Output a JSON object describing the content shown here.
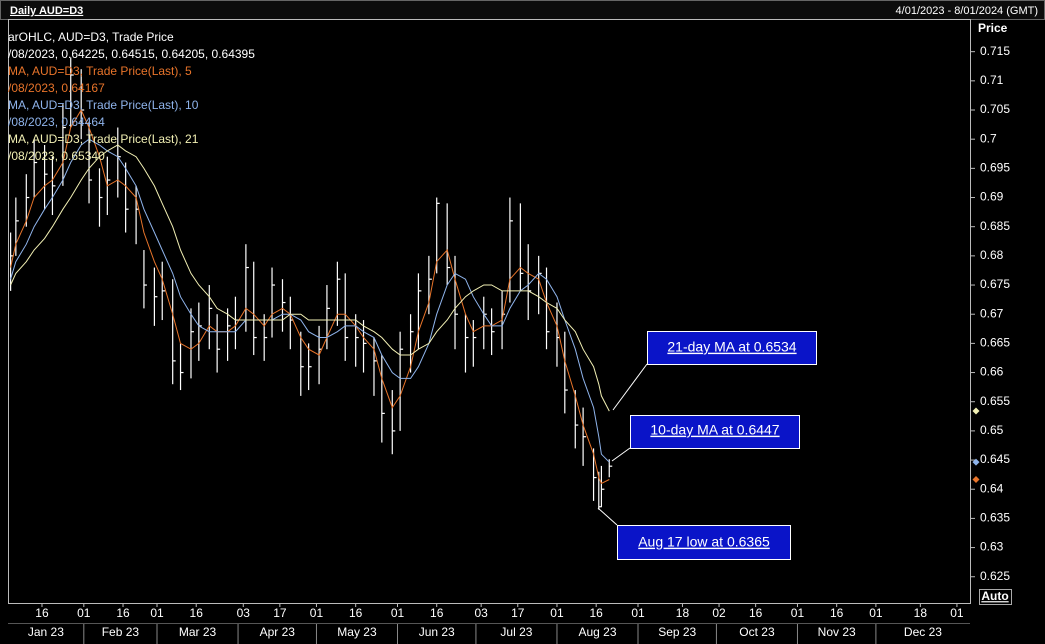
{
  "header": {
    "title": "Daily AUD=D3",
    "range": "4/01/2023 - 8/01/2024 (GMT)",
    "auto_button": "Auto"
  },
  "legend": [
    {
      "color": "#ffffff",
      "lines": [
        "arOHLC, AUD=D3, Trade Price",
        "/08/2023, 0.64225, 0.64515, 0.64205, 0.64395"
      ]
    },
    {
      "color": "#e8742a",
      "lines": [
        "MA, AUD=D3, Trade Price(Last),  5",
        "/08/2023, 0.64167"
      ]
    },
    {
      "color": "#8fb4ec",
      "lines": [
        "MA, AUD=D3, Trade Price(Last),  10",
        "/08/2023, 0.64464"
      ]
    },
    {
      "color": "#f2f0b4",
      "lines": [
        "MA, AUD=D3, Trade Price(Last),  21",
        "/08/2023, 0.65340"
      ]
    }
  ],
  "annotations": [
    "21-day MA at 0.6534",
    "10-day MA at 0.6447",
    "Aug 17 low at 0.6365"
  ],
  "chart_data": {
    "type": "ohlc",
    "ylabel": "Price",
    "x": [
      "2023-01-04",
      "2023-01-06",
      "2023-01-10",
      "2023-01-13",
      "2023-01-17",
      "2023-01-20",
      "2023-01-24",
      "2023-01-27",
      "2023-01-31",
      "2023-02-03",
      "2023-02-07",
      "2023-02-10",
      "2023-02-14",
      "2023-02-17",
      "2023-02-21",
      "2023-02-24",
      "2023-02-28",
      "2023-03-03",
      "2023-03-07",
      "2023-03-10",
      "2023-03-14",
      "2023-03-17",
      "2023-03-21",
      "2023-03-24",
      "2023-03-28",
      "2023-03-31",
      "2023-04-04",
      "2023-04-07",
      "2023-04-11",
      "2023-04-14",
      "2023-04-18",
      "2023-04-21",
      "2023-04-25",
      "2023-04-28",
      "2023-05-02",
      "2023-05-05",
      "2023-05-09",
      "2023-05-12",
      "2023-05-16",
      "2023-05-19",
      "2023-05-23",
      "2023-05-26",
      "2023-05-30",
      "2023-06-02",
      "2023-06-06",
      "2023-06-09",
      "2023-06-13",
      "2023-06-16",
      "2023-06-20",
      "2023-06-23",
      "2023-06-27",
      "2023-06-30",
      "2023-07-04",
      "2023-07-07",
      "2023-07-11",
      "2023-07-14",
      "2023-07-18",
      "2023-07-21",
      "2023-07-25",
      "2023-07-28",
      "2023-08-01",
      "2023-08-04",
      "2023-08-08",
      "2023-08-11",
      "2023-08-15",
      "2023-08-17",
      "2023-08-18",
      "2023-08-21"
    ],
    "bars": {
      "color": "#ffffff",
      "high": [
        0.684,
        0.69,
        0.694,
        0.7,
        0.699,
        0.697,
        0.706,
        0.714,
        0.712,
        0.703,
        0.695,
        0.697,
        0.702,
        0.696,
        0.692,
        0.681,
        0.678,
        0.679,
        0.676,
        0.665,
        0.671,
        0.672,
        0.675,
        0.67,
        0.671,
        0.673,
        0.682,
        0.679,
        0.67,
        0.678,
        0.676,
        0.673,
        0.667,
        0.665,
        0.668,
        0.675,
        0.679,
        0.677,
        0.67,
        0.669,
        0.666,
        0.663,
        0.657,
        0.667,
        0.67,
        0.677,
        0.68,
        0.69,
        0.689,
        0.68,
        0.67,
        0.669,
        0.673,
        0.671,
        0.674,
        0.69,
        0.689,
        0.682,
        0.68,
        0.678,
        0.672,
        0.667,
        0.657,
        0.654,
        0.647,
        0.643,
        0.644,
        0.64515
      ],
      "low": [
        0.674,
        0.68,
        0.685,
        0.69,
        0.688,
        0.687,
        0.692,
        0.702,
        0.7,
        0.689,
        0.685,
        0.687,
        0.69,
        0.684,
        0.682,
        0.671,
        0.668,
        0.669,
        0.658,
        0.657,
        0.659,
        0.662,
        0.664,
        0.66,
        0.662,
        0.664,
        0.667,
        0.663,
        0.662,
        0.666,
        0.667,
        0.664,
        0.656,
        0.657,
        0.658,
        0.664,
        0.668,
        0.662,
        0.661,
        0.66,
        0.656,
        0.648,
        0.646,
        0.65,
        0.66,
        0.664,
        0.67,
        0.677,
        0.675,
        0.664,
        0.66,
        0.661,
        0.664,
        0.663,
        0.664,
        0.672,
        0.674,
        0.669,
        0.67,
        0.664,
        0.661,
        0.653,
        0.647,
        0.644,
        0.638,
        0.6365,
        0.637,
        0.64205
      ],
      "close": [
        0.68,
        0.686,
        0.69,
        0.696,
        0.694,
        0.692,
        0.702,
        0.711,
        0.705,
        0.693,
        0.69,
        0.693,
        0.697,
        0.688,
        0.688,
        0.675,
        0.673,
        0.674,
        0.662,
        0.66,
        0.667,
        0.668,
        0.671,
        0.664,
        0.668,
        0.669,
        0.678,
        0.666,
        0.666,
        0.675,
        0.672,
        0.669,
        0.661,
        0.661,
        0.664,
        0.671,
        0.676,
        0.666,
        0.666,
        0.665,
        0.662,
        0.653,
        0.65,
        0.664,
        0.667,
        0.674,
        0.676,
        0.689,
        0.678,
        0.67,
        0.666,
        0.666,
        0.67,
        0.667,
        0.67,
        0.686,
        0.677,
        0.674,
        0.677,
        0.667,
        0.666,
        0.657,
        0.651,
        0.649,
        0.642,
        0.637,
        0.64,
        0.64395
      ]
    },
    "series": [
      {
        "color": "#e8742a",
        "values": [
          0.678,
          0.682,
          0.686,
          0.69,
          0.692,
          0.693,
          0.696,
          0.702,
          0.705,
          0.702,
          0.697,
          0.692,
          0.693,
          0.692,
          0.69,
          0.684,
          0.679,
          0.676,
          0.67,
          0.665,
          0.664,
          0.665,
          0.668,
          0.667,
          0.667,
          0.668,
          0.671,
          0.67,
          0.668,
          0.67,
          0.671,
          0.67,
          0.666,
          0.664,
          0.663,
          0.666,
          0.67,
          0.67,
          0.668,
          0.666,
          0.664,
          0.659,
          0.654,
          0.656,
          0.661,
          0.667,
          0.672,
          0.679,
          0.681,
          0.676,
          0.67,
          0.667,
          0.668,
          0.668,
          0.669,
          0.676,
          0.678,
          0.677,
          0.676,
          0.672,
          0.668,
          0.662,
          0.656,
          0.651,
          0.646,
          0.642,
          0.641,
          0.64167
        ]
      },
      {
        "color": "#8fb4ec",
        "values": [
          0.676,
          0.679,
          0.682,
          0.685,
          0.688,
          0.69,
          0.693,
          0.696,
          0.699,
          0.7,
          0.699,
          0.698,
          0.697,
          0.695,
          0.692,
          0.688,
          0.684,
          0.681,
          0.677,
          0.673,
          0.67,
          0.668,
          0.667,
          0.667,
          0.667,
          0.667,
          0.669,
          0.669,
          0.669,
          0.669,
          0.67,
          0.67,
          0.669,
          0.667,
          0.666,
          0.666,
          0.667,
          0.668,
          0.668,
          0.667,
          0.666,
          0.663,
          0.66,
          0.659,
          0.659,
          0.661,
          0.665,
          0.67,
          0.675,
          0.677,
          0.676,
          0.673,
          0.67,
          0.668,
          0.668,
          0.671,
          0.674,
          0.675,
          0.677,
          0.676,
          0.673,
          0.669,
          0.664,
          0.659,
          0.654,
          0.649,
          0.646,
          0.64464
        ]
      },
      {
        "color": "#f2f0b4",
        "values": [
          0.675,
          0.677,
          0.679,
          0.681,
          0.683,
          0.685,
          0.688,
          0.69,
          0.693,
          0.695,
          0.697,
          0.698,
          0.699,
          0.698,
          0.697,
          0.695,
          0.692,
          0.689,
          0.685,
          0.681,
          0.677,
          0.675,
          0.673,
          0.671,
          0.67,
          0.669,
          0.669,
          0.669,
          0.669,
          0.669,
          0.669,
          0.67,
          0.67,
          0.669,
          0.669,
          0.669,
          0.669,
          0.669,
          0.669,
          0.668,
          0.667,
          0.666,
          0.664,
          0.663,
          0.663,
          0.664,
          0.665,
          0.667,
          0.669,
          0.671,
          0.673,
          0.674,
          0.675,
          0.675,
          0.674,
          0.674,
          0.674,
          0.674,
          0.673,
          0.672,
          0.671,
          0.669,
          0.667,
          0.664,
          0.661,
          0.658,
          0.656,
          0.6534
        ]
      }
    ],
    "xlim": [
      "2023-01-03",
      "2024-01-06"
    ],
    "xticks": [
      {
        "value": "2023-01-16",
        "label": "16"
      },
      {
        "value": "2023-02-01",
        "label": "01"
      },
      {
        "value": "2023-02-16",
        "label": "16"
      },
      {
        "value": "2023-03-01",
        "label": "01"
      },
      {
        "value": "2023-03-16",
        "label": "16"
      },
      {
        "value": "2023-04-03",
        "label": "03"
      },
      {
        "value": "2023-04-17",
        "label": "17"
      },
      {
        "value": "2023-05-01",
        "label": "01"
      },
      {
        "value": "2023-05-16",
        "label": "16"
      },
      {
        "value": "2023-06-01",
        "label": "01"
      },
      {
        "value": "2023-06-16",
        "label": "16"
      },
      {
        "value": "2023-07-03",
        "label": "03"
      },
      {
        "value": "2023-07-17",
        "label": "17"
      },
      {
        "value": "2023-08-01",
        "label": "01"
      },
      {
        "value": "2023-08-16",
        "label": "16"
      },
      {
        "value": "2023-09-01",
        "label": "01"
      },
      {
        "value": "2023-09-18",
        "label": "18"
      },
      {
        "value": "2023-10-02",
        "label": "02"
      },
      {
        "value": "2023-10-16",
        "label": "16"
      },
      {
        "value": "2023-11-01",
        "label": "01"
      },
      {
        "value": "2023-11-16",
        "label": "16"
      },
      {
        "value": "2023-12-01",
        "label": "01"
      },
      {
        "value": "2023-12-18",
        "label": "18"
      },
      {
        "value": "2024-01-01",
        "label": "01"
      }
    ],
    "xmonths": [
      {
        "value": "2023-01-01",
        "label": "Jan 23"
      },
      {
        "value": "2023-02-01",
        "label": "Feb 23"
      },
      {
        "value": "2023-03-01",
        "label": "Mar 23"
      },
      {
        "value": "2023-04-01",
        "label": "Apr 23"
      },
      {
        "value": "2023-05-01",
        "label": "May 23"
      },
      {
        "value": "2023-06-01",
        "label": "Jun 23"
      },
      {
        "value": "2023-07-01",
        "label": "Jul 23"
      },
      {
        "value": "2023-08-01",
        "label": "Aug 23"
      },
      {
        "value": "2023-09-01",
        "label": "Sep 23"
      },
      {
        "value": "2023-10-01",
        "label": "Oct 23"
      },
      {
        "value": "2023-11-01",
        "label": "Nov 23"
      },
      {
        "value": "2023-12-01",
        "label": "Dec 23"
      }
    ],
    "ylim": [
      0.6205,
      0.7206
    ],
    "yticks": [
      0.625,
      0.63,
      0.635,
      0.64,
      0.645,
      0.65,
      0.655,
      0.66,
      0.665,
      0.67,
      0.675,
      0.68,
      0.685,
      0.69,
      0.695,
      0.7,
      0.705,
      0.71,
      0.715
    ]
  }
}
